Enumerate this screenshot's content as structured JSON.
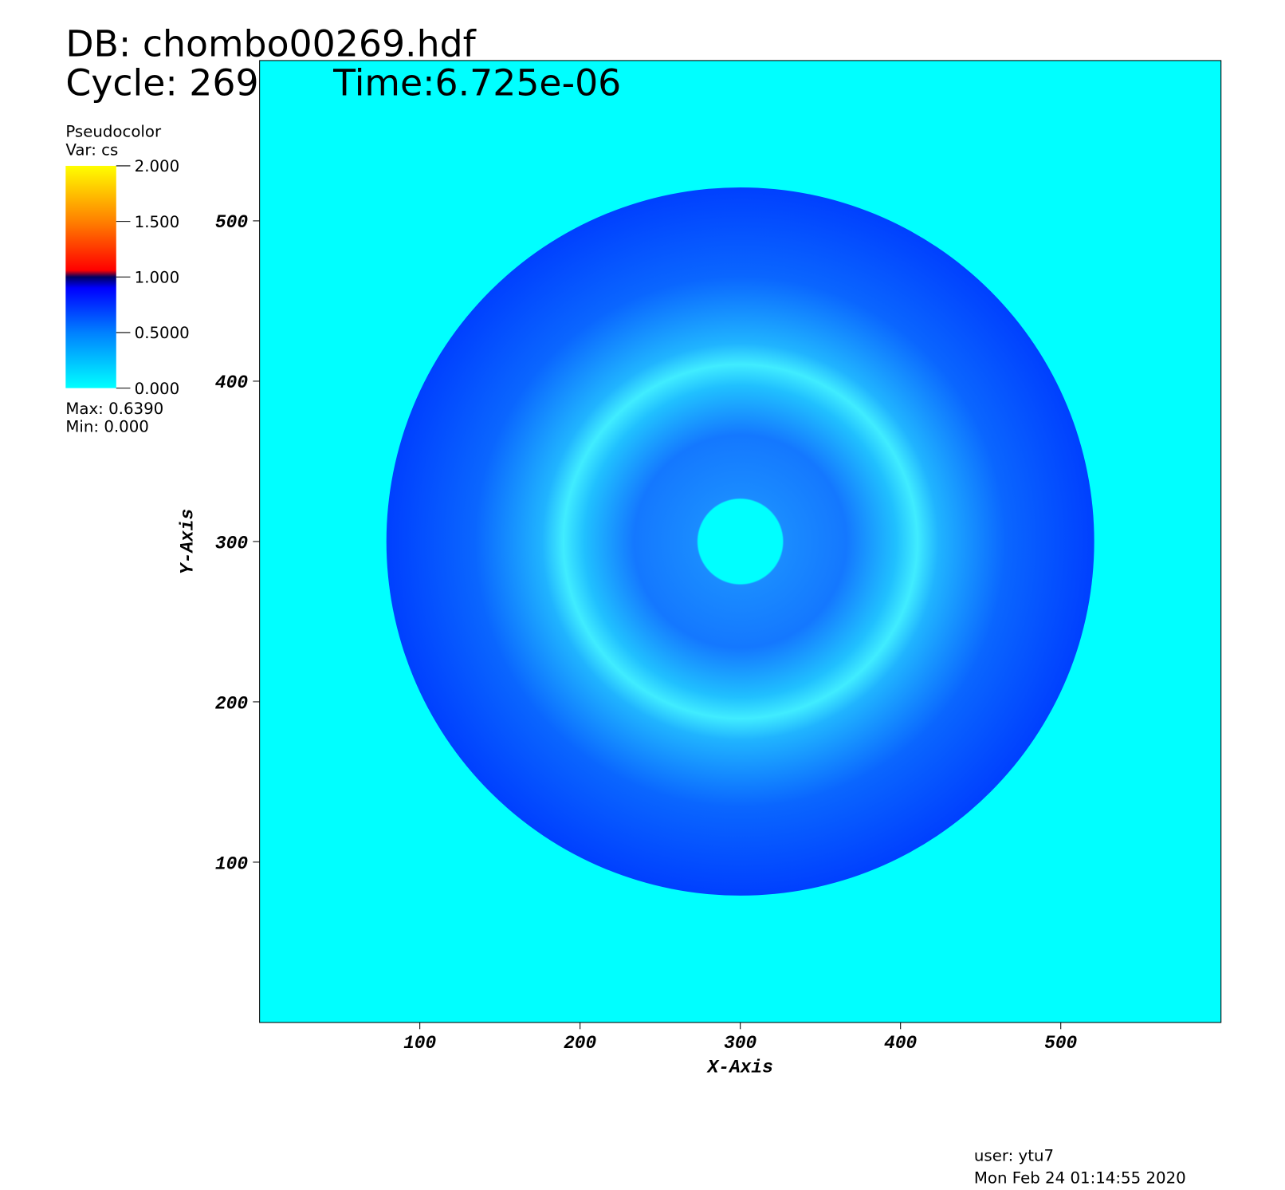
{
  "header": {
    "db": "DB: chombo00269.hdf",
    "cycle": "Cycle: 269",
    "time": "Time:6.725e-06"
  },
  "chart_data": {
    "type": "pseudocolor",
    "legend_title": "Pseudocolor",
    "variable": "Var: cs",
    "colorbar": {
      "lim": [
        0,
        2
      ],
      "ticks": [
        {
          "value": 0,
          "label": "0.000"
        },
        {
          "value": 0.5,
          "label": "0.5000"
        },
        {
          "value": 1,
          "label": "1.000"
        },
        {
          "value": 1.5,
          "label": "1.500"
        },
        {
          "value": 2,
          "label": "2.000"
        }
      ]
    },
    "max_label": "Max:  0.6390",
    "min_label": "Min:  0.000",
    "xlabel": "X-Axis",
    "ylabel": "Y-Axis",
    "xlim": [
      0,
      600
    ],
    "ylim": [
      0,
      600
    ],
    "xticks": [
      100,
      200,
      300,
      400,
      500
    ],
    "yticks": [
      100,
      200,
      300,
      400,
      500
    ]
  },
  "footer": {
    "user": "user: ytu7",
    "date": "Mon Feb 24 01:14:55 2020"
  }
}
